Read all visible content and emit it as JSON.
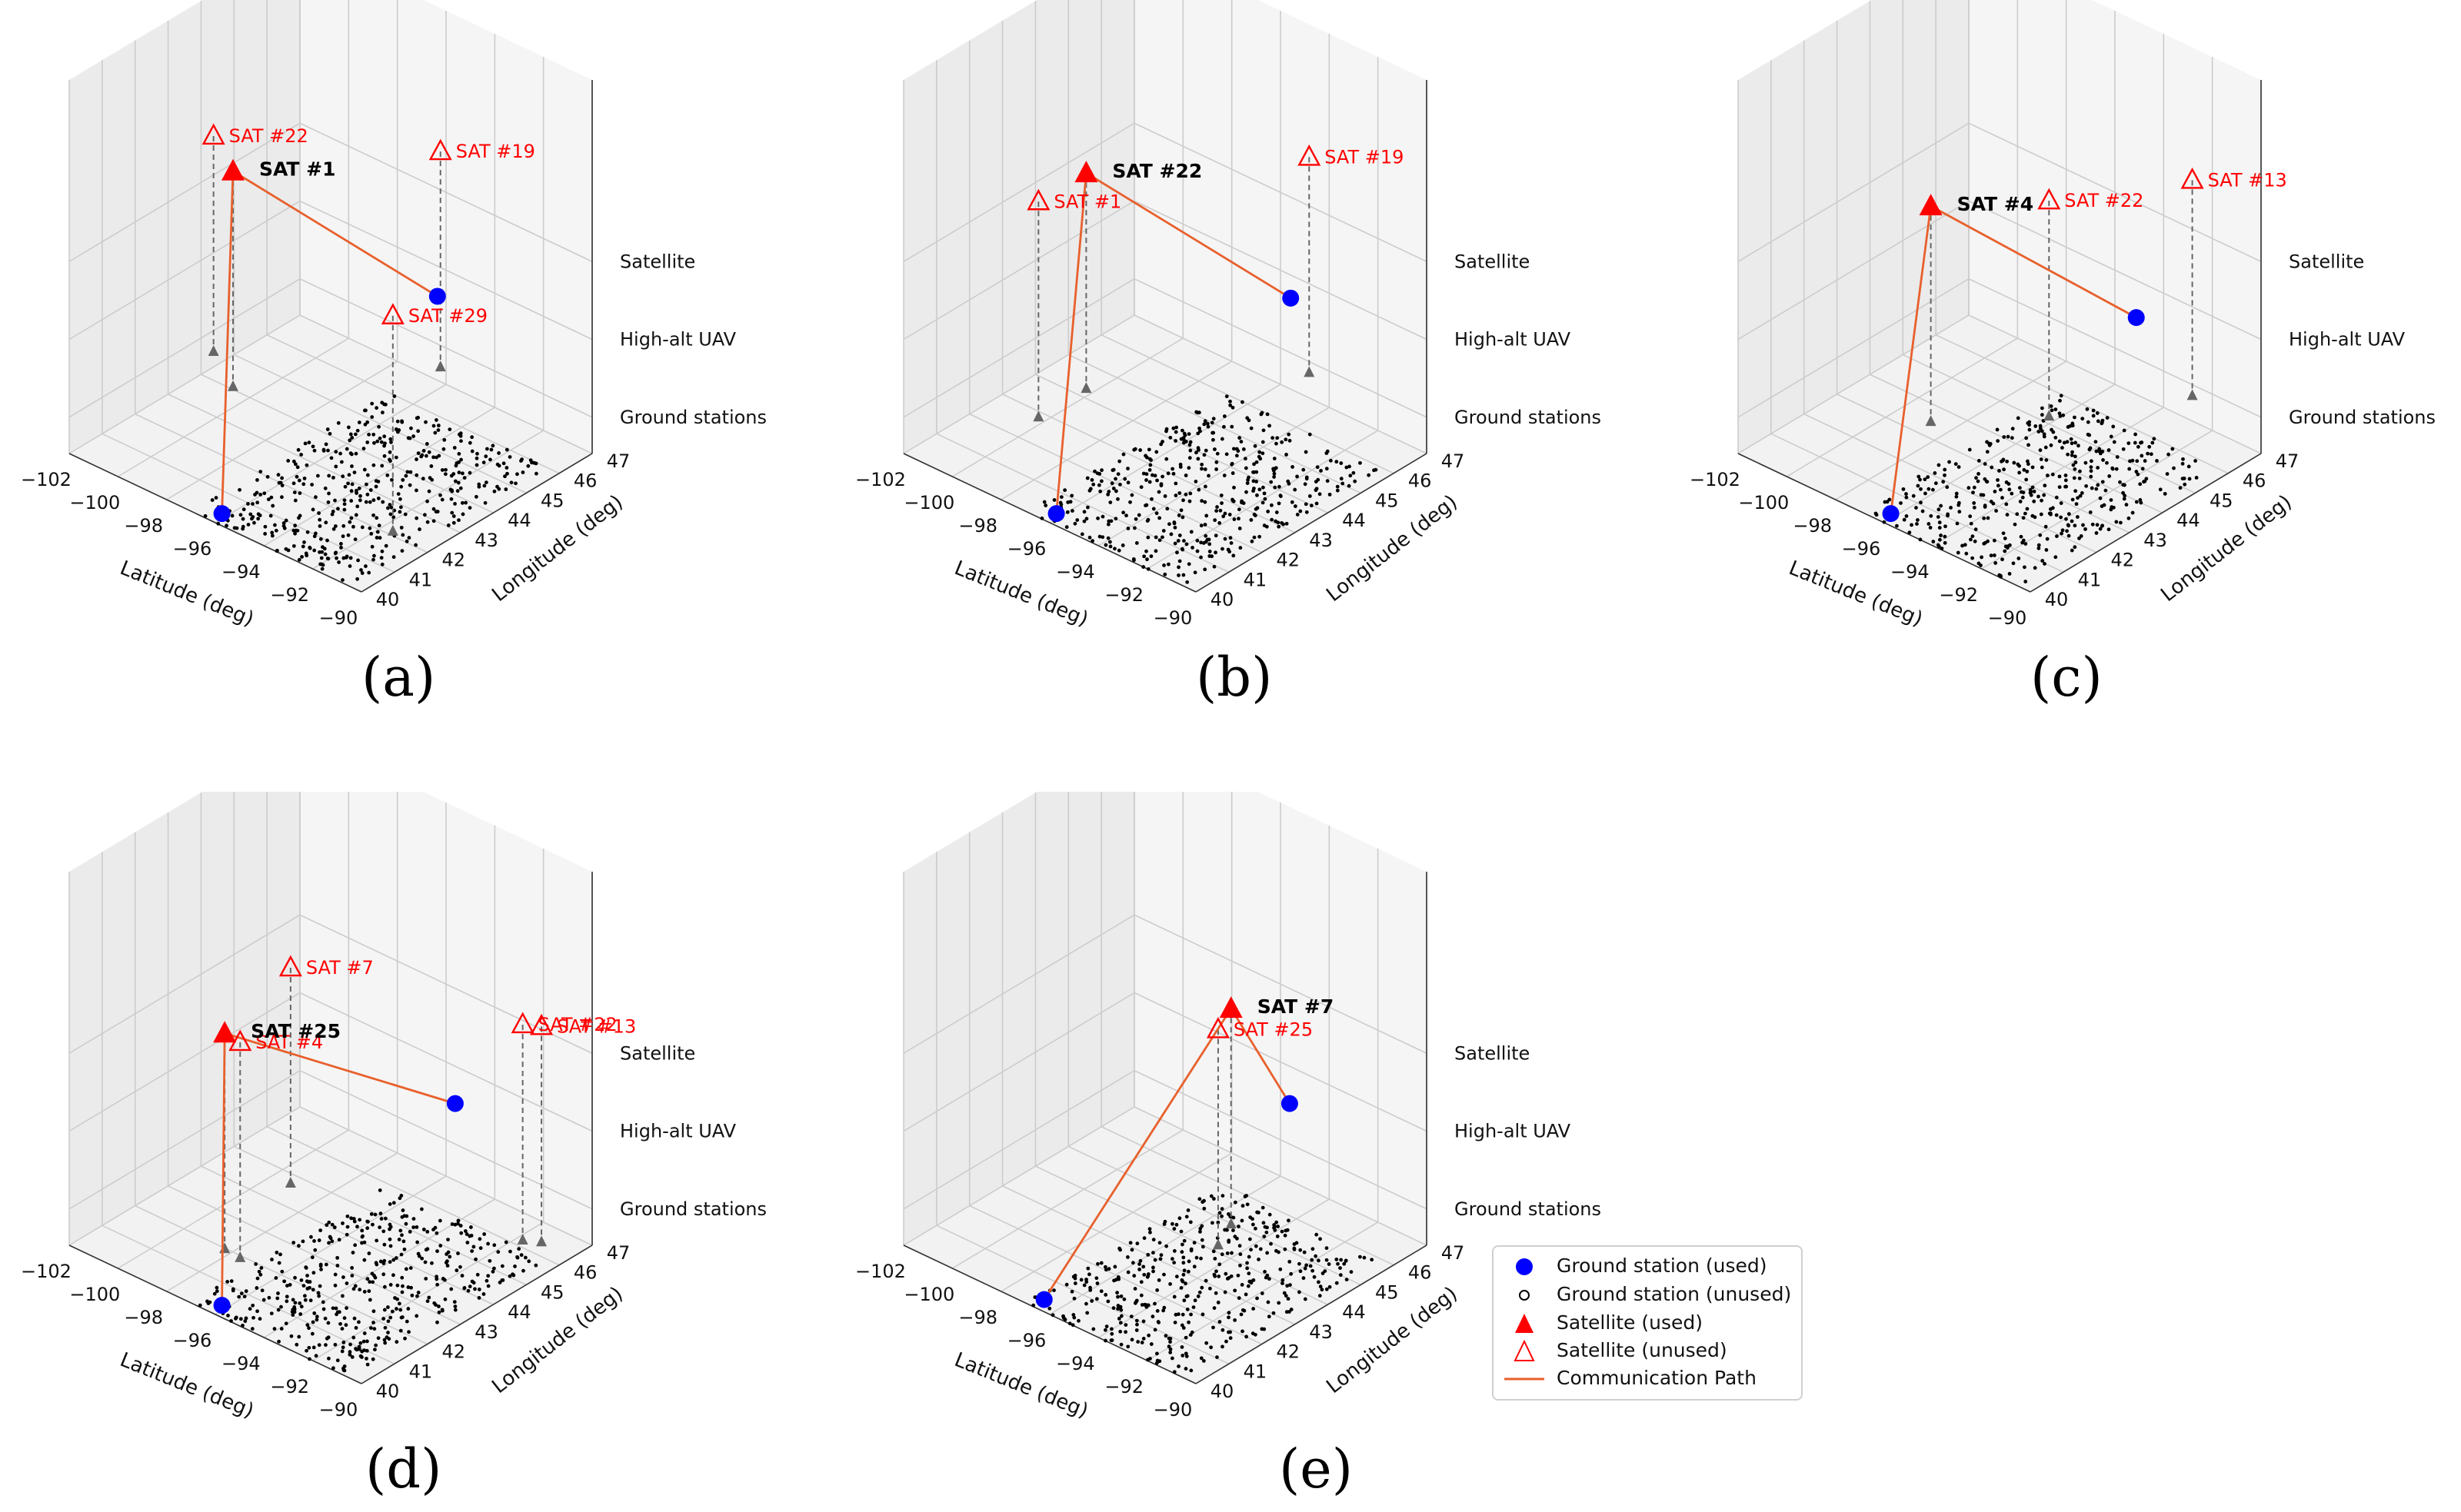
{
  "chart_data": [
    {
      "type": "scatter3d",
      "panel": "a",
      "caption": "(a)",
      "xlabel": "Latitude (deg)",
      "ylabel": "Longitude (deg)",
      "z_tick_labels": [
        "Ground stations",
        "High-alt UAV",
        "Satellite"
      ],
      "x_tick_labels": [
        "−102",
        "−100",
        "−98",
        "−96",
        "−94",
        "−92",
        "−90"
      ],
      "y_tick_labels": [
        "40",
        "41",
        "42",
        "43",
        "44",
        "45",
        "46",
        "47"
      ],
      "xlim": [
        -102,
        -90
      ],
      "ylim": [
        40,
        47
      ],
      "satellites_used": [
        {
          "label": "SAT #1",
          "lat": -101.5,
          "lon": 44.6,
          "layer": "High-alt UAV+"
        }
      ],
      "satellites_unused": [
        {
          "label": "SAT #22",
          "lat": -102.3,
          "lon": 44.6
        },
        {
          "label": "SAT #19",
          "lat": -96.5,
          "lon": 47.2
        },
        {
          "label": "SAT #29",
          "lat": -92.5,
          "lon": 42.8
        }
      ],
      "ground_stations_used": [
        {
          "lat": -96.0,
          "lon": 40.2
        },
        {
          "lat": -95.0,
          "lon": 46.0
        }
      ],
      "communication_path": [
        "Ground station",
        "SAT #1",
        "Ground station"
      ]
    },
    {
      "type": "scatter3d",
      "panel": "b",
      "caption": "(b)",
      "xlabel": "Latitude (deg)",
      "ylabel": "Longitude (deg)",
      "z_tick_labels": [
        "Ground stations",
        "High-alt UAV",
        "Satellite"
      ],
      "x_tick_labels": [
        "−102",
        "−100",
        "−98",
        "−96",
        "−94",
        "−92",
        "−90"
      ],
      "y_tick_labels": [
        "40",
        "41",
        "42",
        "43",
        "44",
        "45",
        "46",
        "47"
      ],
      "xlim": [
        -102,
        -90
      ],
      "ylim": [
        40,
        47
      ],
      "satellites_used": [
        {
          "label": "SAT #22",
          "lat": -101.0,
          "lon": 44.8
        }
      ],
      "satellites_unused": [
        {
          "label": "SAT #1",
          "lat": -101.2,
          "lon": 43.5
        },
        {
          "label": "SAT #19",
          "lat": -95.5,
          "lon": 47.5
        }
      ],
      "ground_stations_used": [
        {
          "lat": -96.0,
          "lon": 40.2
        },
        {
          "lat": -94.5,
          "lon": 46.2
        }
      ],
      "communication_path": [
        "Ground station",
        "SAT #22",
        "Ground station"
      ]
    },
    {
      "type": "scatter3d",
      "panel": "c",
      "caption": "(c)",
      "xlabel": "Latitude (deg)",
      "ylabel": "Longitude (deg)",
      "z_tick_labels": [
        "Ground stations",
        "High-alt UAV",
        "Satellite"
      ],
      "x_tick_labels": [
        "−102",
        "−100",
        "−98",
        "−96",
        "−94",
        "−92",
        "−90"
      ],
      "y_tick_labels": [
        "40",
        "41",
        "42",
        "43",
        "44",
        "45",
        "46",
        "47"
      ],
      "xlim": [
        -102,
        -90
      ],
      "ylim": [
        40,
        47
      ],
      "satellites_used": [
        {
          "label": "SAT #4",
          "lat": -99.5,
          "lon": 44.0
        }
      ],
      "satellites_unused": [
        {
          "label": "SAT #22",
          "lat": -96.0,
          "lon": 45.0
        },
        {
          "label": "SAT #13",
          "lat": -93.5,
          "lon": 47.5
        }
      ],
      "ground_stations_used": [
        {
          "lat": -96.0,
          "lon": 40.2
        },
        {
          "lat": -93.5,
          "lon": 45.8
        }
      ],
      "communication_path": [
        "Ground station",
        "SAT #4",
        "Ground station"
      ]
    },
    {
      "type": "scatter3d",
      "panel": "d",
      "caption": "(d)",
      "xlabel": "Latitude (deg)",
      "ylabel": "Longitude (deg)",
      "z_tick_labels": [
        "Ground stations",
        "High-alt UAV",
        "Satellite"
      ],
      "x_tick_labels": [
        "−102",
        "−100",
        "−98",
        "−96",
        "−94",
        "−92",
        "−90"
      ],
      "y_tick_labels": [
        "40",
        "41",
        "42",
        "43",
        "44",
        "45",
        "46",
        "47"
      ],
      "xlim": [
        -102,
        -90
      ],
      "ylim": [
        40,
        47
      ],
      "satellites_used": [
        {
          "label": "SAT #25",
          "lat": -99.0,
          "lon": 42.5
        }
      ],
      "satellites_unused": [
        {
          "label": "SAT #7",
          "lat": -99.0,
          "lon": 44.5
        },
        {
          "label": "SAT #4",
          "lat": -98.5,
          "lon": 42.6
        },
        {
          "label": "SAT #22",
          "lat": -91.5,
          "lon": 46.0
        },
        {
          "label": "SAT #13",
          "lat": -91.0,
          "lon": 46.2
        }
      ],
      "ground_stations_used": [
        {
          "lat": -96.0,
          "lon": 40.2
        },
        {
          "lat": -94.0,
          "lon": 45.8
        }
      ],
      "communication_path": [
        "Ground station",
        "SAT #25",
        "Ground station"
      ]
    },
    {
      "type": "scatter3d",
      "panel": "e",
      "caption": "(e)",
      "xlabel": "Latitude (deg)",
      "ylabel": "Longitude (deg)",
      "z_tick_labels": [
        "Ground stations",
        "High-alt UAV",
        "Satellite"
      ],
      "x_tick_labels": [
        "−102",
        "−100",
        "−98",
        "−96",
        "−94",
        "−92",
        "−90"
      ],
      "y_tick_labels": [
        "40",
        "41",
        "42",
        "43",
        "44",
        "45",
        "46",
        "47"
      ],
      "xlim": [
        -102,
        -90
      ],
      "ylim": [
        40,
        47
      ],
      "satellites_used": [
        {
          "label": "SAT #7",
          "lat": -96.0,
          "lon": 45.5
        }
      ],
      "satellites_unused": [
        {
          "label": "SAT #25",
          "lat": -94.5,
          "lon": 44.0
        }
      ],
      "ground_stations_used": [
        {
          "lat": -96.5,
          "lon": 40.2
        },
        {
          "lat": -94.0,
          "lon": 45.8
        }
      ],
      "communication_path": [
        "Ground station",
        "SAT #7",
        "Ground station"
      ]
    }
  ],
  "legend": {
    "entries": [
      {
        "label": "Ground station (used)",
        "symbol": "blue-filled-circle"
      },
      {
        "label": "Ground station (unused)",
        "symbol": "black-open-circle"
      },
      {
        "label": "Satellite (used)",
        "symbol": "red-filled-triangle"
      },
      {
        "label": "Satellite (unused)",
        "symbol": "red-open-triangle"
      },
      {
        "label": "Communication Path",
        "symbol": "orange-line"
      }
    ]
  },
  "colors": {
    "used_satellite": "#ff0000",
    "unused_satellite": "#ff0000",
    "ground_used": "#0000ff",
    "ground_unused": "#000000",
    "path": "#e8602c",
    "projection": "#666666",
    "pane": "#f2f2f2",
    "grid": "#cccccc"
  }
}
